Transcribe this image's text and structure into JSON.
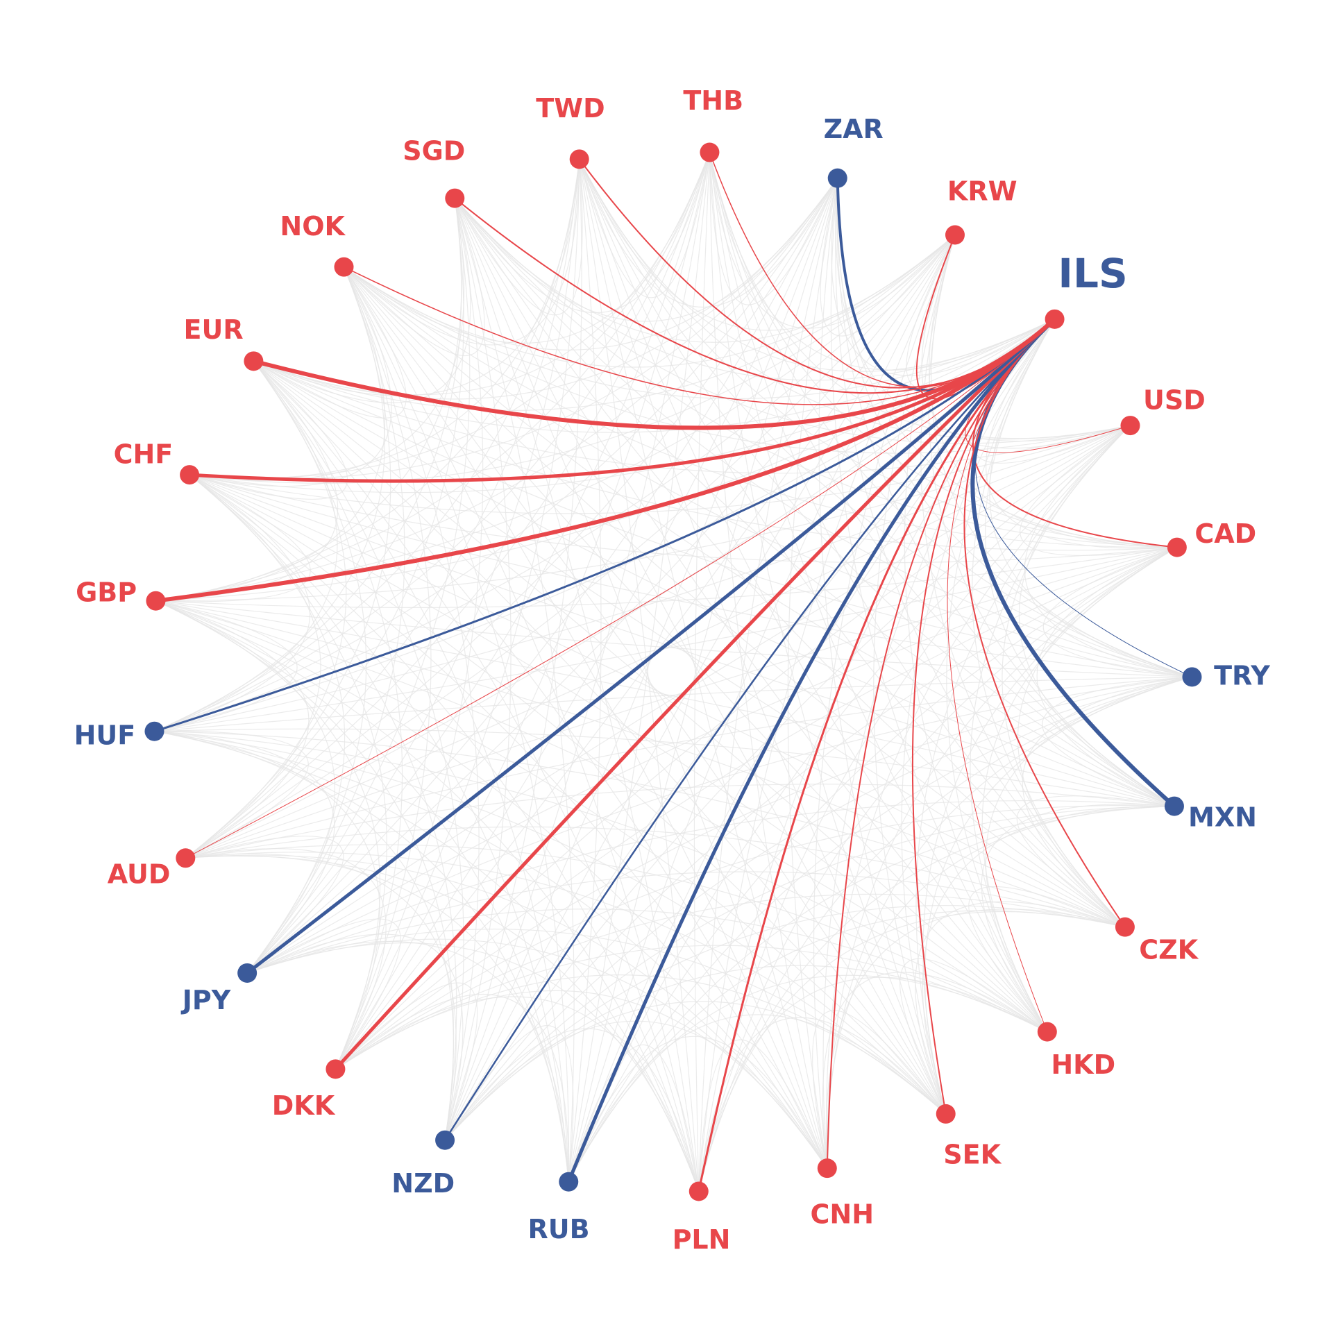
{
  "center": {
    "label": "ILS",
    "color": "#3b5a9a",
    "dot_color": "#e8464a"
  },
  "nodes": [
    {
      "label": "ZAR",
      "color": "#3b5a9a"
    },
    {
      "label": "KRW",
      "color": "#e8464a"
    },
    {
      "label": "USD",
      "color": "#e8464a"
    },
    {
      "label": "CAD",
      "color": "#e8464a"
    },
    {
      "label": "TRY",
      "color": "#3b5a9a"
    },
    {
      "label": "MXN",
      "color": "#3b5a9a"
    },
    {
      "label": "CZK",
      "color": "#e8464a"
    },
    {
      "label": "HKD",
      "color": "#e8464a"
    },
    {
      "label": "SEK",
      "color": "#e8464a"
    },
    {
      "label": "CNH",
      "color": "#e8464a"
    },
    {
      "label": "PLN",
      "color": "#e8464a"
    },
    {
      "label": "RUB",
      "color": "#3b5a9a"
    },
    {
      "label": "NZD",
      "color": "#3b5a9a"
    },
    {
      "label": "DKK",
      "color": "#e8464a"
    },
    {
      "label": "JPY",
      "color": "#3b5a9a"
    },
    {
      "label": "AUD",
      "color": "#e8464a"
    },
    {
      "label": "HUF",
      "color": "#3b5a9a"
    },
    {
      "label": "GBP",
      "color": "#e8464a"
    },
    {
      "label": "CHF",
      "color": "#e8464a"
    },
    {
      "label": "EUR",
      "color": "#e8464a"
    },
    {
      "label": "NOK",
      "color": "#e8464a"
    },
    {
      "label": "SGD",
      "color": "#e8464a"
    },
    {
      "label": "TWD",
      "color": "#e8464a"
    },
    {
      "label": "THB",
      "color": "#e8464a"
    }
  ]
}
